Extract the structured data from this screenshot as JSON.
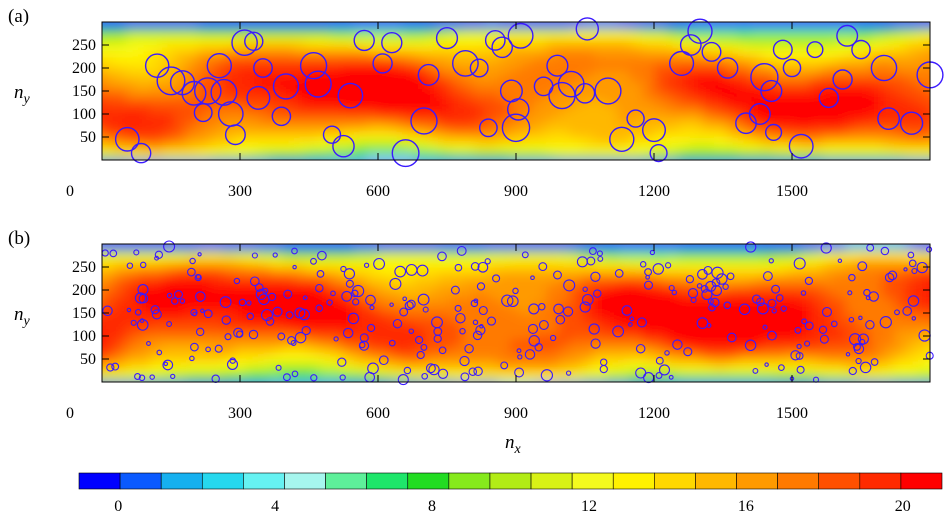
{
  "colors": {
    "colormap": [
      "#0000ff",
      "#0a5aff",
      "#16b0ef",
      "#26d8ee",
      "#66f2f2",
      "#a6f6ee",
      "#5ef09a",
      "#1ee66a",
      "#22dc22",
      "#86ea1c",
      "#b2ec16",
      "#d8f216",
      "#f4fa1e",
      "#fff200",
      "#ffd800",
      "#ffb800",
      "#ff9a00",
      "#ff7a00",
      "#ff5000",
      "#ff2a00",
      "#ff0000"
    ],
    "circle_stroke": "#3a1aff"
  },
  "chart_data": [
    {
      "type": "heatmap",
      "panel_label": "(a)",
      "xlabel": "",
      "ylabel": "n_y",
      "xlim": [
        0,
        1800
      ],
      "ylim": [
        0,
        300
      ],
      "x_ticks": [
        0,
        300,
        600,
        900,
        1200,
        1500
      ],
      "y_ticks": [
        50,
        100,
        150,
        200,
        250
      ],
      "x_tick_labels": [
        "0",
        "300",
        "600",
        "900",
        "1200",
        "1500"
      ],
      "y_tick_labels": [
        "50",
        "100",
        "150",
        "200",
        "250"
      ],
      "circles_r": 12,
      "particles": [
        [
          55,
          45
        ],
        [
          85,
          15
        ],
        [
          120,
          205
        ],
        [
          150,
          172
        ],
        [
          175,
          168
        ],
        [
          200,
          145
        ],
        [
          220,
          103
        ],
        [
          230,
          150
        ],
        [
          255,
          205
        ],
        [
          265,
          147
        ],
        [
          280,
          100
        ],
        [
          290,
          55
        ],
        [
          310,
          255
        ],
        [
          330,
          258
        ],
        [
          340,
          135
        ],
        [
          350,
          200
        ],
        [
          390,
          95
        ],
        [
          400,
          160
        ],
        [
          460,
          205
        ],
        [
          470,
          165
        ],
        [
          500,
          55
        ],
        [
          525,
          30
        ],
        [
          540,
          140
        ],
        [
          570,
          260
        ],
        [
          610,
          210
        ],
        [
          630,
          255
        ],
        [
          660,
          15
        ],
        [
          700,
          85
        ],
        [
          710,
          185
        ],
        [
          750,
          265
        ],
        [
          790,
          210
        ],
        [
          820,
          200
        ],
        [
          840,
          70
        ],
        [
          855,
          260
        ],
        [
          870,
          245
        ],
        [
          890,
          150
        ],
        [
          900,
          70
        ],
        [
          905,
          110
        ],
        [
          910,
          270
        ],
        [
          960,
          160
        ],
        [
          990,
          205
        ],
        [
          1000,
          140
        ],
        [
          1020,
          165
        ],
        [
          1050,
          145
        ],
        [
          1055,
          285
        ],
        [
          1100,
          150
        ],
        [
          1130,
          45
        ],
        [
          1160,
          90
        ],
        [
          1200,
          65
        ],
        [
          1210,
          15
        ],
        [
          1260,
          210
        ],
        [
          1280,
          250
        ],
        [
          1300,
          280
        ],
        [
          1325,
          235
        ],
        [
          1360,
          200
        ],
        [
          1400,
          80
        ],
        [
          1430,
          100
        ],
        [
          1440,
          180
        ],
        [
          1455,
          150
        ],
        [
          1460,
          60
        ],
        [
          1480,
          240
        ],
        [
          1500,
          200
        ],
        [
          1520,
          30
        ],
        [
          1550,
          240
        ],
        [
          1580,
          135
        ],
        [
          1610,
          175
        ],
        [
          1620,
          270
        ],
        [
          1650,
          240
        ],
        [
          1700,
          200
        ],
        [
          1710,
          90
        ],
        [
          1760,
          80
        ],
        [
          1800,
          185
        ]
      ]
    },
    {
      "type": "heatmap",
      "panel_label": "(b)",
      "xlabel": "n_x",
      "ylabel": "n_y",
      "xlim": [
        0,
        1800
      ],
      "ylim": [
        0,
        300
      ],
      "x_ticks": [
        0,
        300,
        600,
        900,
        1200,
        1500
      ],
      "y_ticks": [
        50,
        100,
        150,
        200,
        250
      ],
      "x_tick_labels": [
        "0",
        "300",
        "600",
        "900",
        "1200",
        "1500"
      ],
      "y_tick_labels": [
        "50",
        "100",
        "150",
        "200",
        "250"
      ],
      "circles_r": 4.5,
      "particles": "many small circles, randomly distributed"
    }
  ],
  "colorbar": {
    "range": [
      -1,
      21
    ],
    "ticks": [
      0,
      4,
      8,
      12,
      16,
      20
    ],
    "tick_labels": [
      "0",
      "4",
      "8",
      "12",
      "16",
      "20"
    ]
  }
}
